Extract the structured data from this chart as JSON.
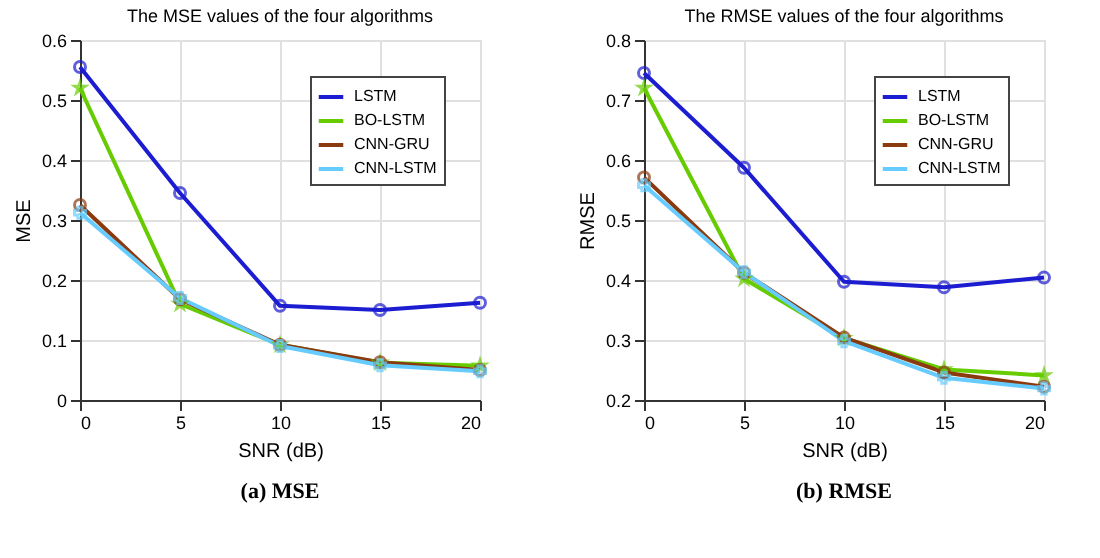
{
  "chart_data": [
    {
      "type": "line",
      "title": "The MSE values of the four algorithms",
      "xlabel": "SNR (dB)",
      "ylabel": "MSE",
      "x": [
        0,
        5,
        10,
        15,
        20
      ],
      "xlim": [
        0,
        20
      ],
      "xticks": [
        0,
        5,
        10,
        15,
        20
      ],
      "ylim": [
        0,
        0.6
      ],
      "yticks": [
        0,
        0.1,
        0.2,
        0.3,
        0.4,
        0.5,
        0.6
      ],
      "grid": true,
      "legend": "top right",
      "annotations": [
        "(a) MSE"
      ],
      "series": [
        {
          "name": "LSTM",
          "color": "#1c1cd0",
          "marker": "circle",
          "values": [
            0.555,
            0.345,
            0.157,
            0.15,
            0.162
          ]
        },
        {
          "name": "BO-LSTM",
          "color": "#66cc00",
          "marker": "star",
          "values": [
            0.52,
            0.16,
            0.092,
            0.062,
            0.057
          ]
        },
        {
          "name": "CNN-GRU",
          "color": "#8b3a0f",
          "marker": "circle",
          "values": [
            0.325,
            0.168,
            0.092,
            0.063,
            0.05
          ]
        },
        {
          "name": "CNN-LSTM",
          "color": "#66ccff",
          "marker": "cross",
          "values": [
            0.312,
            0.17,
            0.09,
            0.058,
            0.048
          ]
        }
      ]
    },
    {
      "type": "line",
      "title": "The RMSE values of the four algorithms",
      "xlabel": "SNR (dB)",
      "ylabel": "RMSE",
      "x": [
        0,
        5,
        10,
        15,
        20
      ],
      "xlim": [
        0,
        20
      ],
      "xticks": [
        0,
        5,
        10,
        15,
        20
      ],
      "ylim": [
        0.2,
        0.8
      ],
      "yticks": [
        0.2,
        0.3,
        0.4,
        0.5,
        0.6,
        0.7,
        0.8
      ],
      "grid": true,
      "legend": "top right",
      "annotations": [
        "(b) RMSE"
      ],
      "series": [
        {
          "name": "LSTM",
          "color": "#1c1cd0",
          "marker": "circle",
          "values": [
            0.745,
            0.587,
            0.397,
            0.388,
            0.404
          ]
        },
        {
          "name": "BO-LSTM",
          "color": "#66cc00",
          "marker": "star",
          "values": [
            0.72,
            0.402,
            0.303,
            0.251,
            0.241
          ]
        },
        {
          "name": "CNN-GRU",
          "color": "#8b3a0f",
          "marker": "circle",
          "values": [
            0.571,
            0.412,
            0.304,
            0.246,
            0.222
          ]
        },
        {
          "name": "CNN-LSTM",
          "color": "#66ccff",
          "marker": "cross",
          "values": [
            0.558,
            0.413,
            0.298,
            0.237,
            0.219
          ]
        }
      ]
    }
  ]
}
